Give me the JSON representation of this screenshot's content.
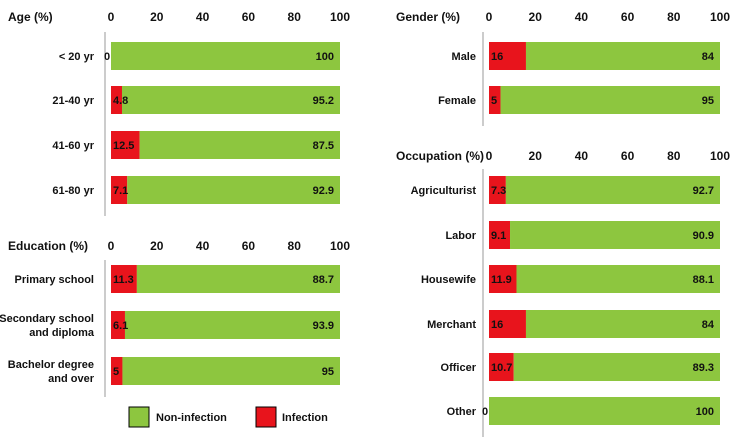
{
  "colors": {
    "infection": "#e8141c",
    "non_infection": "#8dc63f",
    "border": "#9a9a9a"
  },
  "legend": {
    "non_infection": "Non-infection",
    "infection": "Infection"
  },
  "chart_data": [
    {
      "type": "bar",
      "orientation": "horizontal",
      "stacked": true,
      "title": "Age (%)",
      "ticks": [
        "0",
        "20",
        "40",
        "60",
        "80",
        "100"
      ],
      "xlim": [
        0,
        100
      ],
      "categories": [
        "< 20 yr",
        "21-40 yr",
        "41-60 yr",
        "61-80 yr"
      ],
      "series": [
        {
          "name": "Infection",
          "values": [
            0,
            4.8,
            12.5,
            7.1
          ],
          "labels": [
            "0",
            "4.8",
            "12.5",
            "7.1"
          ]
        },
        {
          "name": "Non-infection",
          "values": [
            100,
            95.2,
            87.5,
            92.9
          ],
          "labels": [
            "100",
            "95.2",
            "87.5",
            "92.9"
          ]
        }
      ]
    },
    {
      "type": "bar",
      "orientation": "horizontal",
      "stacked": true,
      "title": "Education (%)",
      "ticks": [
        "0",
        "20",
        "40",
        "60",
        "80",
        "100"
      ],
      "xlim": [
        0,
        100
      ],
      "categories": [
        "Primary school",
        "Secondary school and diploma",
        "Bachelor degree and over"
      ],
      "series": [
        {
          "name": "Infection",
          "values": [
            11.3,
            6.1,
            5
          ],
          "labels": [
            "11.3",
            "6.1",
            "5"
          ]
        },
        {
          "name": "Non-infection",
          "values": [
            88.7,
            93.9,
            95
          ],
          "labels": [
            "88.7",
            "93.9",
            "95"
          ]
        }
      ]
    },
    {
      "type": "bar",
      "orientation": "horizontal",
      "stacked": true,
      "title": "Gender (%)",
      "ticks": [
        "0",
        "20",
        "40",
        "60",
        "80",
        "100"
      ],
      "xlim": [
        0,
        100
      ],
      "categories": [
        "Male",
        "Female"
      ],
      "series": [
        {
          "name": "Infection",
          "values": [
            16,
            5
          ],
          "labels": [
            "16",
            "5"
          ]
        },
        {
          "name": "Non-infection",
          "values": [
            84,
            95
          ],
          "labels": [
            "84",
            "95"
          ]
        }
      ]
    },
    {
      "type": "bar",
      "orientation": "horizontal",
      "stacked": true,
      "title": "Occupation (%)",
      "ticks": [
        "0",
        "20",
        "40",
        "60",
        "80",
        "100"
      ],
      "xlim": [
        0,
        100
      ],
      "categories": [
        "Agriculturist",
        "Labor",
        "Housewife",
        "Merchant",
        "Officer",
        "Other"
      ],
      "series": [
        {
          "name": "Infection",
          "values": [
            7.3,
            9.1,
            11.9,
            16,
            10.7,
            0
          ],
          "labels": [
            "7.3",
            "9.1",
            "11.9",
            "16",
            "10.7",
            "0"
          ]
        },
        {
          "name": "Non-infection",
          "values": [
            92.7,
            90.9,
            88.1,
            84,
            89.3,
            100
          ],
          "labels": [
            "92.7",
            "90.9",
            "88.1",
            "84",
            "89.3",
            "100"
          ]
        }
      ]
    }
  ]
}
